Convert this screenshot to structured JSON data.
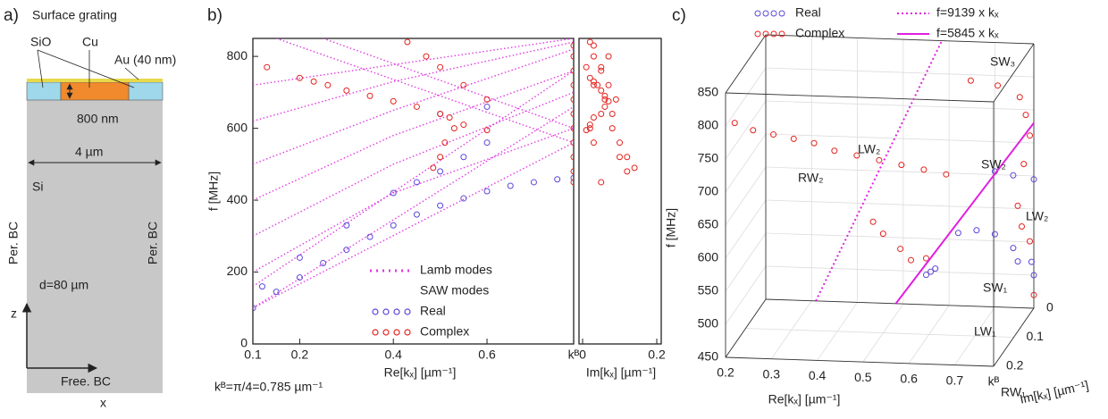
{
  "panel_a": {
    "label": "a)",
    "title": "Surface grating",
    "labels": [
      "SiO",
      "Cu",
      "Au (40 nm)",
      "800 nm",
      "4 µm",
      "Si",
      "Per. BC",
      "Per. BC",
      "d=80 µm",
      "z",
      "x",
      "Free. BC"
    ]
  },
  "chart_data": [
    {
      "type": "dispersion",
      "panel_label": "b)",
      "ylabel": "f [MHz]",
      "xlabel": "Re[kₓ] [µm⁻¹]",
      "x2label": "Im[kₓ] [µm⁻¹]",
      "note": "kᴮ=π/4=0.785 µm⁻¹",
      "xlim": [
        0.1,
        0.785
      ],
      "xticks": [
        0.1,
        0.2,
        0.4,
        0.6,
        {
          "value": 0.785,
          "label": "kᴮ"
        }
      ],
      "ylim": [
        0,
        850
      ],
      "yticks": [
        0,
        200,
        400,
        600,
        800
      ],
      "x2lim": [
        0,
        0.2
      ],
      "x2ticks": [
        0,
        0.2
      ],
      "legend_heading": "SAW modes",
      "series": [
        {
          "name": "Lamb modes",
          "color": "#e23be2",
          "branches": [
            {
              "x": [
                0.1,
                0.785
              ],
              "y": [
                100,
                560
              ]
            },
            {
              "x": [
                0.1,
                0.785
              ],
              "y": [
                100,
                660
              ]
            },
            {
              "x": [
                0.1,
                0.785
              ],
              "y": [
                160,
                760
              ]
            },
            {
              "x": [
                0.1,
                0.4,
                0.785
              ],
              "y": [
                200,
                420,
                600
              ]
            },
            {
              "x": [
                0.1,
                0.4,
                0.785
              ],
              "y": [
                300,
                500,
                700
              ]
            },
            {
              "x": [
                0.1,
                0.4,
                0.785
              ],
              "y": [
                400,
                580,
                760
              ]
            },
            {
              "x": [
                0.1,
                0.4,
                0.785
              ],
              "y": [
                500,
                650,
                820
              ]
            },
            {
              "x": [
                0.1,
                0.4,
                0.785
              ],
              "y": [
                620,
                730,
                840
              ]
            },
            {
              "x": [
                0.15,
                0.785
              ],
              "y": [
                850,
                560
              ]
            },
            {
              "x": [
                0.25,
                0.785
              ],
              "y": [
                850,
                600
              ]
            },
            {
              "x": [
                0.1,
                0.785
              ],
              "y": [
                720,
                850
              ]
            }
          ]
        },
        {
          "name": "Real",
          "color": "#5b48d8",
          "x": [
            0.1,
            0.15,
            0.2,
            0.25,
            0.3,
            0.35,
            0.4,
            0.45,
            0.5,
            0.55,
            0.6,
            0.65,
            0.7,
            0.75,
            0.785,
            0.12,
            0.2,
            0.3,
            0.4,
            0.45,
            0.5,
            0.55,
            0.6,
            0.5,
            0.6
          ],
          "y": [
            100,
            145,
            185,
            225,
            262,
            298,
            330,
            360,
            385,
            405,
            425,
            440,
            450,
            458,
            462,
            160,
            240,
            330,
            420,
            450,
            480,
            520,
            560,
            640,
            660
          ]
        },
        {
          "name": "Complex",
          "color": "#e3231f",
          "x": [
            0.13,
            0.2,
            0.23,
            0.26,
            0.3,
            0.35,
            0.4,
            0.45,
            0.5,
            0.52,
            0.55,
            0.6,
            0.53,
            0.51,
            0.5,
            0.485,
            0.43,
            0.47,
            0.5,
            0.55,
            0.6,
            0.785,
            0.785,
            0.785,
            0.785,
            0.785,
            0.785,
            0.785,
            0.785,
            0.785,
            0.785,
            0.785
          ],
          "y": [
            770,
            740,
            730,
            720,
            705,
            690,
            675,
            660,
            640,
            630,
            610,
            595,
            600,
            560,
            520,
            490,
            840,
            800,
            770,
            720,
            680,
            450,
            480,
            520,
            560,
            600,
            640,
            680,
            720,
            760,
            800,
            830
          ],
          "im": [
            0.01,
            0.02,
            0.03,
            0.04,
            0.05,
            0.06,
            0.07,
            0.06,
            0.05,
            0.03,
            0.02,
            0.01,
            0.08,
            0.1,
            0.12,
            0.14,
            0.02,
            0.03,
            0.05,
            0.07,
            0.09,
            0.05,
            0.12,
            0.1,
            0.03,
            0.02,
            0.08,
            0.06,
            0.03,
            0.05,
            0.07,
            0.03
          ]
        }
      ]
    },
    {
      "type": "dispersion3d",
      "panel_label": "c)",
      "zlabel": "f [MHz]",
      "xlabel": "Re[kₓ] [µm⁻¹]",
      "ylabel": "Im[kₓ] [µm⁻¹]",
      "xlim": [
        0.2,
        0.785
      ],
      "xticks": [
        0.2,
        0.3,
        0.4,
        0.5,
        0.6,
        0.7,
        {
          "value": 0.785,
          "label": "kᴮ"
        }
      ],
      "ylim": [
        0,
        0.2
      ],
      "yticks": [
        0,
        0.1,
        0.2
      ],
      "zlim": [
        450,
        850
      ],
      "zticks": [
        450,
        500,
        550,
        600,
        650,
        700,
        750,
        800,
        850
      ],
      "mode_labels": [
        "SW₃",
        "LW₂",
        "SW₂",
        "RW₂",
        "LW₂",
        "SW₁",
        "LW₁",
        "RW₁"
      ],
      "series": [
        {
          "name": "Real",
          "color": "#5b48d8",
          "x": [
            0.55,
            0.56,
            0.57,
            0.62,
            0.66,
            0.7,
            0.74,
            0.78,
            0.7,
            0.74,
            0.785,
            0.75,
            0.785
          ],
          "y": [
            0,
            0,
            0,
            0,
            0,
            0,
            0,
            0,
            0,
            0,
            0,
            0,
            0
          ],
          "z": [
            495,
            500,
            505,
            560,
            565,
            560,
            540,
            520,
            655,
            650,
            645,
            520,
            500
          ]
        },
        {
          "name": "Complex",
          "color": "#e3231f",
          "x": [
            0.22,
            0.26,
            0.3,
            0.34,
            0.38,
            0.42,
            0.46,
            0.5,
            0.54,
            0.58,
            0.62,
            0.785,
            0.785,
            0.785,
            0.785,
            0.785,
            0.785,
            0.785,
            0.75,
            0.7,
            0.5,
            0.5,
            0.52,
            0.53,
            0.55,
            0.785
          ],
          "y": [
            0.2,
            0.2,
            0.19,
            0.18,
            0.17,
            0.16,
            0.14,
            0.12,
            0.1,
            0.08,
            0.06,
            0.02,
            0.06,
            0.08,
            0.05,
            0.02,
            0.04,
            0.07,
            0.1,
            0.12,
            0.15,
            0.1,
            0.06,
            0.03,
            0,
            0
          ],
          "z": [
            805,
            795,
            785,
            775,
            765,
            750,
            735,
            720,
            705,
            690,
            675,
            560,
            600,
            640,
            690,
            720,
            760,
            800,
            830,
            845,
            640,
            600,
            560,
            530,
            520,
            470
          ]
        },
        {
          "name": "f=9139 x kₓ",
          "color": "#e020e0",
          "slope": 9139,
          "style": "dotted"
        },
        {
          "name": "f=5845 x kₓ",
          "color": "#e020e0",
          "slope": 5845,
          "style": "solid"
        }
      ]
    }
  ]
}
